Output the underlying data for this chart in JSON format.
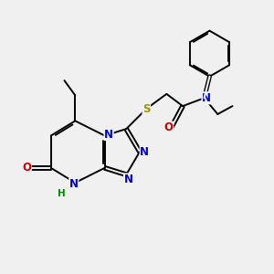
{
  "background_color": "#f0f0f0",
  "atom_colors": {
    "C": "#000000",
    "N": "#0000cc",
    "O": "#cc0000",
    "S": "#999900",
    "H": "#008800"
  },
  "bond_color": "#000000",
  "figsize": [
    3.0,
    3.0
  ],
  "dpi": 100,
  "xlim": [
    0,
    10
  ],
  "ylim": [
    0,
    10
  ]
}
